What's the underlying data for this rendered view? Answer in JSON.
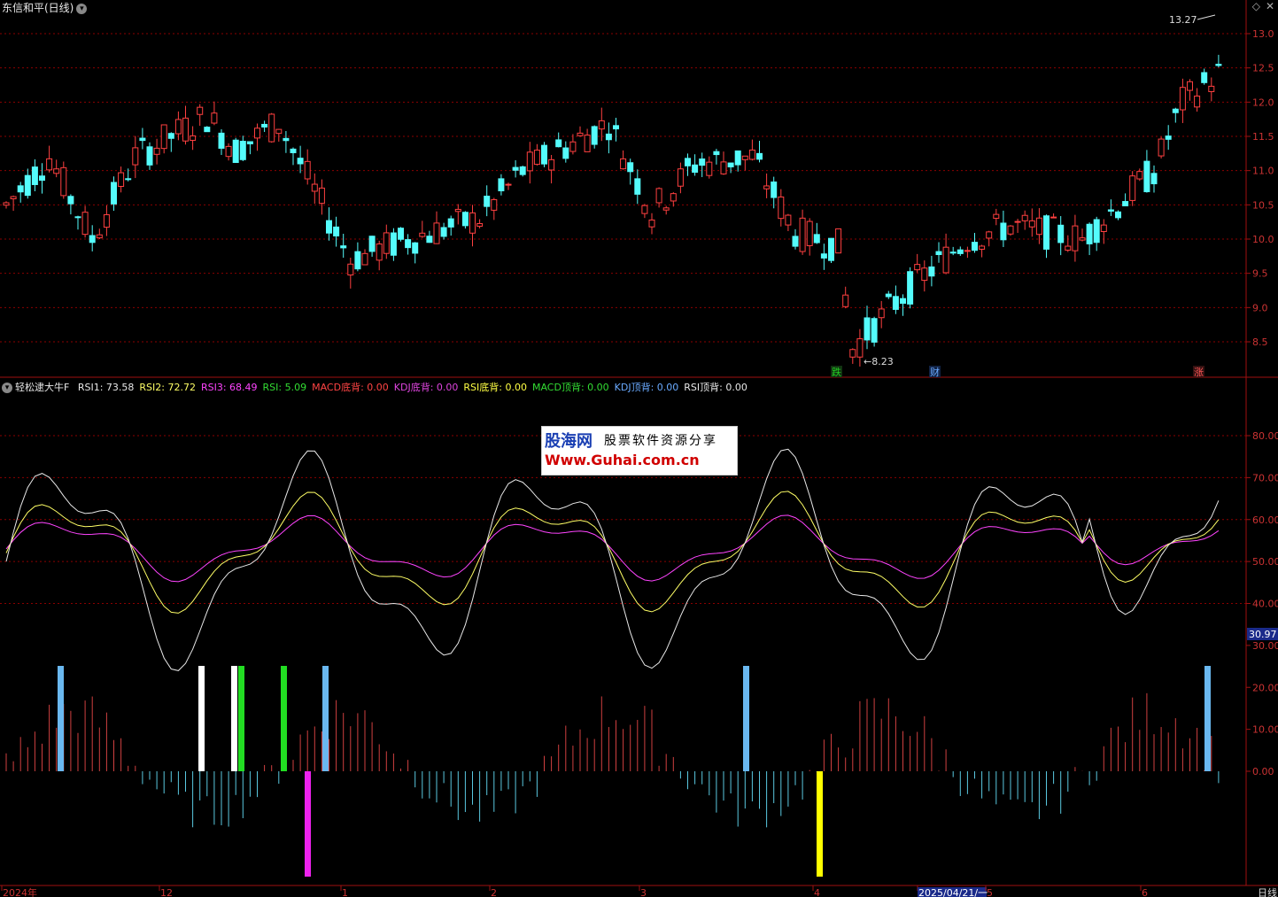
{
  "title": "东信和平(日线)",
  "price_axis": {
    "labels": [
      "13.0",
      "12.5",
      "12.0",
      "11.5",
      "11.0",
      "10.5",
      "10.0",
      "9.5",
      "9.0",
      "8.5"
    ]
  },
  "annotations": {
    "high": "13.27",
    "low": "8.23"
  },
  "event_badges": [
    {
      "text": "跌",
      "color": "#22cc22",
      "bg": "#113311"
    },
    {
      "text": "财",
      "color": "#6aaaff",
      "bg": "#112244"
    },
    {
      "text": "涨",
      "color": "#ff5555",
      "bg": "#331111"
    }
  ],
  "indicator": {
    "name": "轻松逮大牛F",
    "items": [
      {
        "label": "RSI1: 73.58",
        "color": "#e8e8e8"
      },
      {
        "label": "RSI2: 72.72",
        "color": "#ffff66"
      },
      {
        "label": "RSI3: 68.49",
        "color": "#ff44ff"
      },
      {
        "label": "RSI: 5.09",
        "color": "#33dd33"
      },
      {
        "label": "MACD底背: 0.00",
        "color": "#ff4444"
      },
      {
        "label": "KDJ底背: 0.00",
        "color": "#dd44dd"
      },
      {
        "label": "RSI底背: 0.00",
        "color": "#ffff44"
      },
      {
        "label": "MACD顶背: 0.00",
        "color": "#33dd33"
      },
      {
        "label": "KDJ顶背: 0.00",
        "color": "#6aaaff"
      },
      {
        "label": "RSI顶背: 0.00",
        "color": "#e8e8e8"
      }
    ]
  },
  "indicator_axis": {
    "labels": [
      "80.00",
      "70.00",
      "60.00",
      "50.00",
      "40.00",
      "30.00",
      "20.00",
      "10.00",
      "0.00"
    ],
    "current": "30.97"
  },
  "watermark": {
    "line1": "股海网",
    "line1b": "股票软件资源分享",
    "line2": "Www.Guhai.com.cn"
  },
  "time_axis": {
    "labels": [
      "2024年",
      "12",
      "1",
      "2",
      "3",
      "4",
      "2025/04/21/一",
      "5",
      "6"
    ],
    "period": "日线"
  },
  "colors": {
    "up": "#ff4040",
    "down": "#54fcfc",
    "grid": "#8b0000",
    "axis": "#a01010"
  }
}
